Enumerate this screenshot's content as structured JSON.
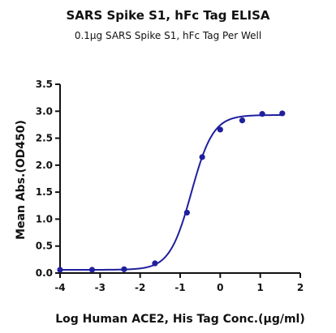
{
  "chart_data": {
    "type": "scatter",
    "title": "SARS Spike S1, hFc Tag ELISA",
    "subtitle": "0.1μg SARS Spike S1, hFc Tag Per Well",
    "xlabel": "Log Human ACE2, His Tag Conc.(μg/ml)",
    "ylabel": "Mean Abs.(OD450)",
    "xlim": [
      -4,
      2
    ],
    "ylim": [
      0,
      3.5
    ],
    "xticks": [
      "-4",
      "-3",
      "-2",
      "-1",
      "0",
      "1",
      "2"
    ],
    "yticks": [
      "0.0",
      "0.5",
      "1.0",
      "1.5",
      "2.0",
      "2.5",
      "3.0",
      "3.5"
    ],
    "points": [
      {
        "x": -4.0,
        "y": 0.06
      },
      {
        "x": -3.2,
        "y": 0.06
      },
      {
        "x": -2.4,
        "y": 0.07
      },
      {
        "x": -1.63,
        "y": 0.18
      },
      {
        "x": -0.83,
        "y": 1.12
      },
      {
        "x": -0.45,
        "y": 2.15
      },
      {
        "x": 0.0,
        "y": 2.66
      },
      {
        "x": 0.55,
        "y": 2.83
      },
      {
        "x": 1.05,
        "y": 2.95
      },
      {
        "x": 1.55,
        "y": 2.96
      }
    ],
    "fit": {
      "model": "4PL",
      "bottom": 0.06,
      "top": 2.93,
      "logEC50": -0.72,
      "hill": 1.6
    },
    "color": "#1f1f9e"
  }
}
